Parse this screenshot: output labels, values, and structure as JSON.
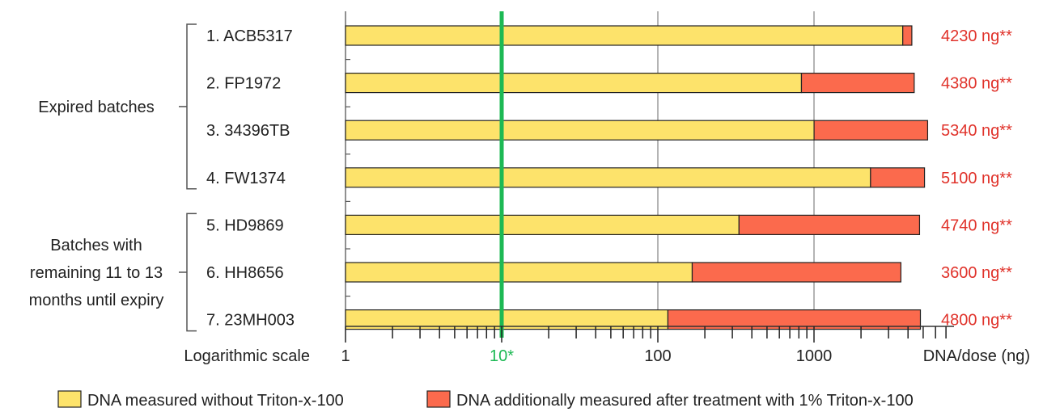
{
  "chart_data": {
    "type": "bar",
    "orientation": "horizontal",
    "stacked": true,
    "scale": "log",
    "xlim": [
      1,
      10000
    ],
    "x_ticks": [
      {
        "value": 1,
        "label": "1"
      },
      {
        "value": 10,
        "label": "10*"
      },
      {
        "value": 100,
        "label": "100"
      },
      {
        "value": 1000,
        "label": "1000"
      }
    ],
    "x_scale_label": "Logarithmic scale",
    "x_unit_label": "DNA/dose (ng)",
    "reference_line": {
      "value": 10,
      "color": "#1db954"
    },
    "groups": [
      {
        "label_lines": [
          "Expired batches"
        ],
        "categories": [
          0,
          1,
          2,
          3
        ]
      },
      {
        "label_lines": [
          "Batches with",
          "remaining 11 to 13",
          "months until expiry"
        ],
        "categories": [
          4,
          5,
          6
        ]
      }
    ],
    "categories": [
      "1. ACB5317",
      "2. FP1972",
      "3. 34396TB",
      "4. FW1374",
      "5. HD9869",
      "6. HH8656",
      "7. 23MH003"
    ],
    "series": [
      {
        "name": "DNA measured without Triton-x-100",
        "color": "#fde36b",
        "values": [
          3700,
          830,
          1000,
          2300,
          330,
          165,
          115
        ]
      },
      {
        "name": "DNA additionally measured after  treatment with 1% Triton-x-100",
        "color": "#fb6a4d",
        "values": [
          530,
          3550,
          4340,
          2800,
          4410,
          3435,
          4685
        ]
      }
    ],
    "totals": [
      4230,
      4380,
      5340,
      5100,
      4740,
      3600,
      4800
    ],
    "total_labels": [
      "4230 ng**",
      "4380 ng**",
      "5340 ng**",
      "5100 ng**",
      "4740 ng**",
      "3600 ng**",
      "4800 ng**"
    ],
    "total_label_color": "#e0322a",
    "grid": true,
    "legend_position": "bottom"
  }
}
